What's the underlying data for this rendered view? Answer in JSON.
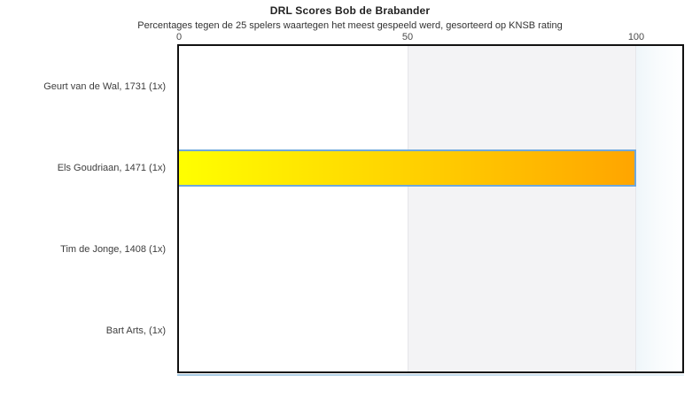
{
  "chart_data": {
    "type": "bar",
    "orientation": "horizontal",
    "title": "DRL Scores Bob de Brabander",
    "subtitle": "Percentages tegen de 25 spelers waartegen het meest gespeeld werd, gesorteerd op KNSB rating",
    "categories": [
      "Geurt van de Wal, 1731 (1x)",
      "Els Goudriaan, 1471 (1x)",
      "Tim de Jonge, 1408 (1x)",
      "Bart Arts,  (1x)"
    ],
    "values": [
      0,
      100,
      0,
      0
    ],
    "xlabel": "",
    "ylabel": "",
    "xticks": [
      "0",
      "50",
      "100"
    ],
    "xtick_values": [
      0,
      50,
      100
    ],
    "xlim": [
      0,
      110
    ],
    "grid": "off",
    "legend": "none",
    "highlight_zone": {
      "from": 50,
      "to": 100,
      "color": "#f3f3f5"
    },
    "bar_style": {
      "gradient_from": "#ffff00",
      "gradient_to": "#ffa500",
      "border_color": "#6fa8dc"
    }
  }
}
